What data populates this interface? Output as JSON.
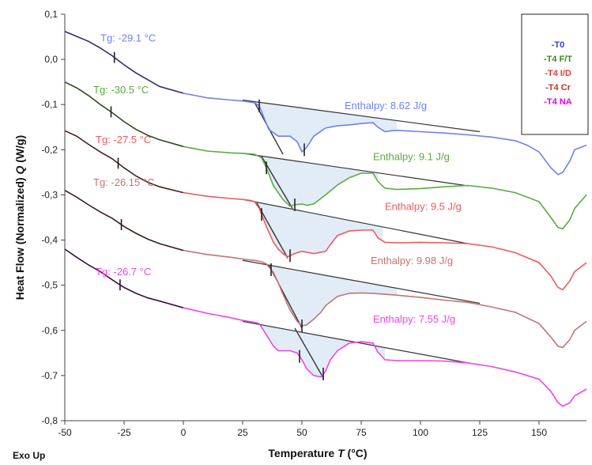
{
  "chart_data": {
    "type": "line",
    "xlabel_prefix": "Temperature ",
    "xlabel_var": "T",
    "xlabel_suffix": " (°C)",
    "ylabel_prefix": "Heat Flow (Normalized) ",
    "ylabel_var": "Q",
    "ylabel_suffix": " (W/g)",
    "corner_label": "Exo Up",
    "xlim": [
      -50,
      170
    ],
    "ylim": [
      -0.8,
      0.1
    ],
    "x_ticks": [
      -50,
      -25,
      0,
      25,
      50,
      75,
      100,
      125,
      150
    ],
    "y_ticks": [
      0.1,
      0.0,
      -0.1,
      -0.2,
      -0.3,
      -0.4,
      -0.5,
      -0.6,
      -0.7,
      -0.8
    ],
    "y_tick_labels": [
      "0,1",
      "0,0",
      "-0,1",
      "-0,2",
      "-0,3",
      "-0,4",
      "-0,5",
      "-0,6",
      "-0,7",
      "-0,8"
    ],
    "legend": {
      "position": "top-right",
      "entries": [
        {
          "label": "-T0",
          "color": "#3b3bd6"
        },
        {
          "label": "-T4 F/T",
          "color": "#3a8a1e"
        },
        {
          "label": "-T4 I/D",
          "color": "#e83b3b"
        },
        {
          "label": "-T4 Cr",
          "color": "#c0392b"
        },
        {
          "label": "-T4 NA",
          "color": "#e600e6"
        }
      ]
    },
    "series": [
      {
        "name": "-T0",
        "color": "#6f7ff0",
        "dark_color": "#2c2c6e",
        "x": [
          -50,
          -40,
          -35,
          -30,
          -25,
          -20,
          -15,
          -10,
          0,
          10,
          20,
          25,
          30,
          32,
          36,
          40,
          45,
          48,
          50,
          52,
          55,
          60,
          65,
          70,
          75,
          80,
          82,
          85,
          88,
          90,
          100,
          110,
          120,
          130,
          140,
          145,
          150,
          155,
          158,
          160,
          163,
          165,
          170
        ],
        "y": [
          0.062,
          0.04,
          0.025,
          0.008,
          -0.012,
          -0.03,
          -0.045,
          -0.06,
          -0.075,
          -0.085,
          -0.09,
          -0.092,
          -0.096,
          -0.103,
          -0.155,
          -0.17,
          -0.17,
          -0.182,
          -0.205,
          -0.195,
          -0.17,
          -0.152,
          -0.147,
          -0.145,
          -0.142,
          -0.14,
          -0.15,
          -0.16,
          -0.158,
          -0.157,
          -0.16,
          -0.163,
          -0.167,
          -0.172,
          -0.18,
          -0.19,
          -0.205,
          -0.24,
          -0.255,
          -0.25,
          -0.225,
          -0.2,
          -0.19
        ],
        "dark_until": -10,
        "tg": {
          "x": -29.1,
          "text": "Tg: -29.1 °C",
          "label_x": -35,
          "label_y": 0.04
        },
        "enthalpy": {
          "text": "Enthalpy: 8.62 J/g",
          "label_x": 68,
          "label_y": -0.11,
          "baseline": [
            [
              25,
              -0.09
            ],
            [
              125,
              -0.16
            ]
          ],
          "fill_from": 31,
          "fill_to": 90,
          "marks_x": [
            32,
            51
          ]
        },
        "tangent": [
          [
            30,
            -0.095
          ],
          [
            42,
            -0.21
          ]
        ]
      },
      {
        "name": "-T4 F/T",
        "color": "#5aab3e",
        "dark_color": "#2e4a22",
        "x": [
          -50,
          -45,
          -40,
          -35,
          -30,
          -25,
          -20,
          -15,
          -10,
          0,
          10,
          20,
          25,
          30,
          33,
          35,
          38,
          42,
          45,
          47,
          50,
          52,
          55,
          60,
          65,
          70,
          75,
          80,
          82,
          85,
          90,
          100,
          110,
          120,
          130,
          140,
          150,
          155,
          158,
          160,
          163,
          165,
          170
        ],
        "y": [
          -0.05,
          -0.063,
          -0.08,
          -0.1,
          -0.118,
          -0.138,
          -0.155,
          -0.168,
          -0.178,
          -0.193,
          -0.203,
          -0.207,
          -0.208,
          -0.21,
          -0.218,
          -0.24,
          -0.28,
          -0.31,
          -0.325,
          -0.322,
          -0.32,
          -0.323,
          -0.32,
          -0.3,
          -0.278,
          -0.262,
          -0.252,
          -0.252,
          -0.27,
          -0.285,
          -0.288,
          -0.286,
          -0.282,
          -0.279,
          -0.285,
          -0.295,
          -0.315,
          -0.35,
          -0.372,
          -0.375,
          -0.355,
          -0.33,
          -0.3
        ],
        "dark_until": -10,
        "tg": {
          "x": -30.5,
          "text": "Tg: -30.5 °C",
          "label_x": -38,
          "label_y": -0.075
        },
        "enthalpy": {
          "text": "Enthalpy: 9.1 J/g",
          "label_x": 80,
          "label_y": -0.223,
          "baseline": [
            [
              25,
              -0.208
            ],
            [
              120,
              -0.28
            ]
          ],
          "fill_from": 33,
          "fill_to": 82,
          "marks_x": [
            35,
            47
          ]
        },
        "tangent": [
          [
            33,
            -0.215
          ],
          [
            46,
            -0.33
          ]
        ]
      },
      {
        "name": "-T4 I/D",
        "color": "#ef5a5a",
        "dark_color": "#4a1e1e",
        "x": [
          -50,
          -45,
          -40,
          -35,
          -30,
          -25,
          -20,
          -15,
          -10,
          0,
          10,
          20,
          25,
          28,
          30,
          32,
          35,
          38,
          40,
          42,
          44,
          46,
          48,
          50,
          55,
          60,
          62,
          65,
          70,
          75,
          80,
          82,
          85,
          90,
          100,
          110,
          120,
          130,
          140,
          150,
          155,
          158,
          160,
          163,
          165,
          170
        ],
        "y": [
          -0.158,
          -0.17,
          -0.188,
          -0.205,
          -0.22,
          -0.24,
          -0.258,
          -0.272,
          -0.282,
          -0.295,
          -0.303,
          -0.308,
          -0.31,
          -0.312,
          -0.315,
          -0.33,
          -0.37,
          -0.405,
          -0.42,
          -0.43,
          -0.437,
          -0.432,
          -0.428,
          -0.425,
          -0.43,
          -0.425,
          -0.41,
          -0.39,
          -0.38,
          -0.378,
          -0.378,
          -0.395,
          -0.405,
          -0.406,
          -0.405,
          -0.406,
          -0.408,
          -0.415,
          -0.428,
          -0.45,
          -0.48,
          -0.505,
          -0.51,
          -0.49,
          -0.47,
          -0.45
        ],
        "dark_until": -10,
        "tg": {
          "x": -27.5,
          "text": "Tg: -27.5 °C",
          "label_x": -37,
          "label_y": -0.185
        },
        "enthalpy": {
          "text": "Enthalpy: 9.5 J/g",
          "label_x": 85,
          "label_y": -0.333,
          "baseline": [
            [
              25,
              -0.31
            ],
            [
              120,
              -0.408
            ]
          ],
          "fill_from": 30,
          "fill_to": 84,
          "marks_x": [
            33,
            45
          ]
        },
        "tangent": [
          [
            31,
            -0.318
          ],
          [
            44,
            -0.44
          ]
        ]
      },
      {
        "name": "-T4 Cr",
        "color": "#c47373",
        "dark_color": "#3a1f1f",
        "x": [
          -50,
          -45,
          -40,
          -35,
          -30,
          -25,
          -20,
          -15,
          -10,
          0,
          10,
          20,
          25,
          30,
          33,
          35,
          38,
          40,
          42,
          45,
          48,
          50,
          52,
          55,
          58,
          60,
          65,
          70,
          75,
          80,
          85,
          90,
          100,
          110,
          120,
          130,
          140,
          150,
          155,
          158,
          160,
          163,
          165,
          170
        ],
        "y": [
          -0.29,
          -0.305,
          -0.322,
          -0.338,
          -0.352,
          -0.37,
          -0.385,
          -0.398,
          -0.408,
          -0.423,
          -0.432,
          -0.438,
          -0.442,
          -0.445,
          -0.448,
          -0.453,
          -0.472,
          -0.495,
          -0.52,
          -0.555,
          -0.58,
          -0.59,
          -0.588,
          -0.575,
          -0.56,
          -0.545,
          -0.525,
          -0.518,
          -0.517,
          -0.518,
          -0.52,
          -0.522,
          -0.527,
          -0.533,
          -0.538,
          -0.548,
          -0.56,
          -0.585,
          -0.615,
          -0.635,
          -0.638,
          -0.62,
          -0.6,
          -0.58
        ],
        "dark_until": -10,
        "tg": {
          "x": -26.15,
          "text": "Tg: -26.15 °C",
          "label_x": -38,
          "label_y": -0.28
        },
        "enthalpy": {
          "text": "Enthalpy: 9.98 J/g",
          "label_x": 79,
          "label_y": -0.453,
          "baseline": [
            [
              25,
              -0.445
            ],
            [
              125,
              -0.54
            ]
          ],
          "fill_from": 35,
          "fill_to": 90,
          "marks_x": [
            37,
            50
          ]
        },
        "tangent": [
          [
            36,
            -0.455
          ],
          [
            50,
            -0.595
          ]
        ]
      },
      {
        "name": "-T4 NA",
        "color": "#ee44ee",
        "dark_color": "#3a1040",
        "x": [
          -50,
          -45,
          -40,
          -35,
          -30,
          -25,
          -20,
          -15,
          -10,
          0,
          10,
          20,
          25,
          30,
          32,
          35,
          38,
          40,
          45,
          48,
          50,
          52,
          55,
          58,
          60,
          62,
          65,
          70,
          75,
          80,
          82,
          85,
          90,
          100,
          110,
          120,
          130,
          140,
          150,
          155,
          158,
          160,
          163,
          165,
          170
        ],
        "y": [
          -0.42,
          -0.438,
          -0.455,
          -0.47,
          -0.488,
          -0.505,
          -0.518,
          -0.528,
          -0.535,
          -0.55,
          -0.562,
          -0.572,
          -0.578,
          -0.582,
          -0.585,
          -0.61,
          -0.635,
          -0.645,
          -0.645,
          -0.65,
          -0.665,
          -0.685,
          -0.7,
          -0.703,
          -0.69,
          -0.665,
          -0.645,
          -0.628,
          -0.625,
          -0.628,
          -0.648,
          -0.665,
          -0.667,
          -0.667,
          -0.668,
          -0.672,
          -0.68,
          -0.692,
          -0.708,
          -0.735,
          -0.76,
          -0.768,
          -0.76,
          -0.745,
          -0.73
        ],
        "dark_until": -10,
        "tg": {
          "x": -26.7,
          "text": "Tg: -26.7 °C",
          "label_x": -37,
          "label_y": -0.478
        },
        "enthalpy": {
          "text": "Enthalpy: 7.55 J/g",
          "label_x": 80,
          "label_y": -0.583,
          "baseline": [
            [
              25,
              -0.58
            ],
            [
              120,
              -0.672
            ]
          ],
          "fill_from": 30,
          "fill_to": 85,
          "marks_x": [
            49,
            59
          ]
        },
        "tangent": [
          [
            47,
            -0.595
          ],
          [
            59,
            -0.705
          ]
        ]
      }
    ]
  }
}
